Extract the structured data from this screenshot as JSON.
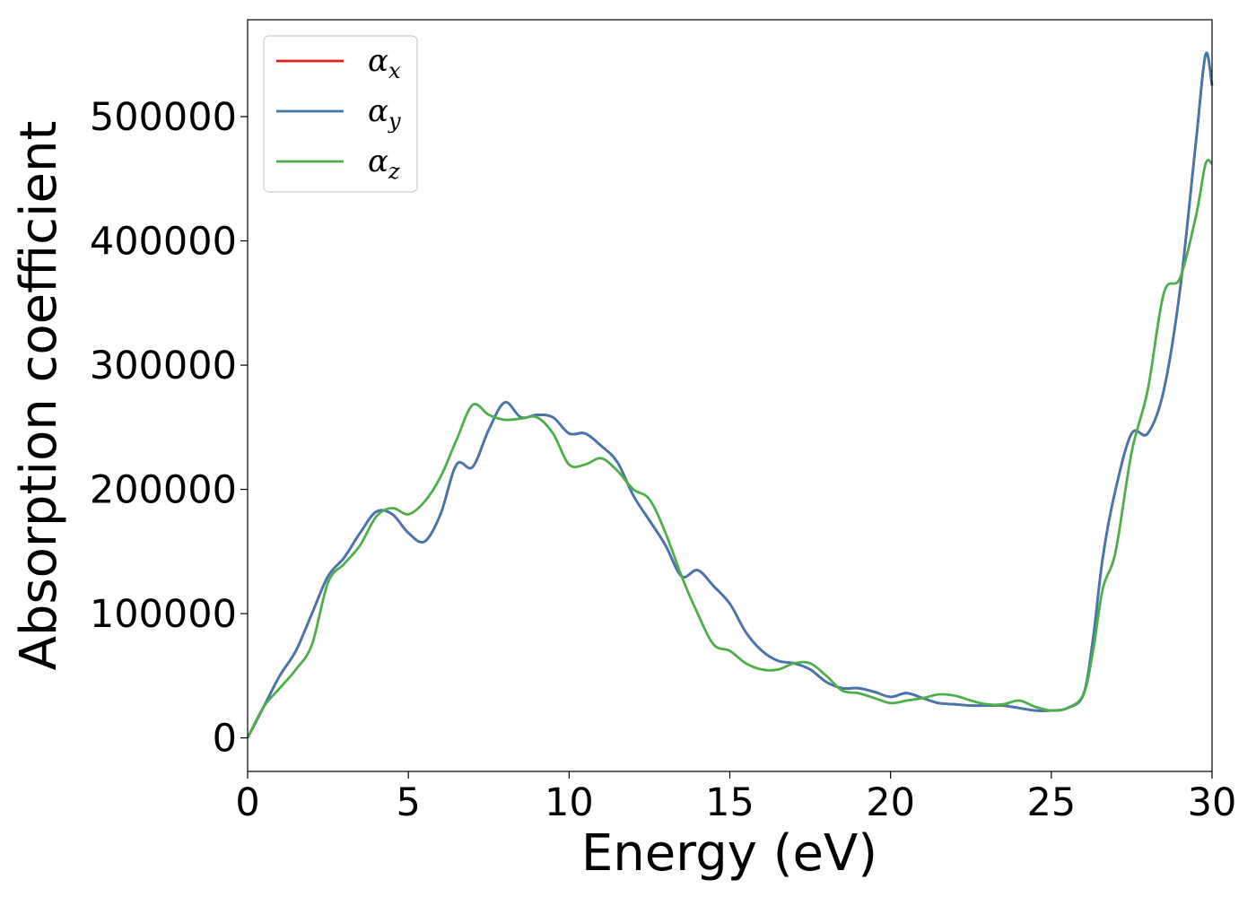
{
  "chart_data": {
    "type": "line",
    "xlabel": "Energy (eV)",
    "ylabel": "Absorption coefficient",
    "xlim": [
      0,
      30
    ],
    "ylim": [
      -27000,
      578000
    ],
    "xticks": [
      0,
      5,
      10,
      15,
      20,
      25,
      30
    ],
    "xtick_labels": [
      "0",
      "5",
      "10",
      "15",
      "20",
      "25",
      "30"
    ],
    "yticks": [
      0,
      100000,
      200000,
      300000,
      400000,
      500000
    ],
    "ytick_labels": [
      "0",
      "100000",
      "200000",
      "300000",
      "400000",
      "500000"
    ],
    "grid": false,
    "legend_position": "top-left",
    "series": [
      {
        "name": "α_x",
        "symbol": "α",
        "subscript": "x",
        "color": "#e41a1c",
        "x": [
          0,
          0.5,
          1,
          1.5,
          2,
          2.5,
          3,
          3.5,
          4,
          4.5,
          5,
          5.5,
          6,
          6.5,
          7,
          7.5,
          8,
          8.5,
          9,
          9.5,
          10,
          10.5,
          11,
          11.5,
          12,
          12.5,
          13,
          13.5,
          14,
          14.5,
          15,
          15.5,
          16,
          16.5,
          17,
          17.5,
          18,
          18.5,
          19,
          19.5,
          20,
          20.5,
          21,
          21.5,
          22,
          22.5,
          23,
          23.5,
          24,
          24.5,
          25,
          25.5,
          26,
          26.3,
          26.6,
          27,
          27.5,
          28,
          28.5,
          29,
          29.5,
          29.8,
          30
        ],
        "y": [
          0,
          25000,
          50000,
          70000,
          100000,
          130000,
          145000,
          165000,
          182000,
          180000,
          165000,
          158000,
          180000,
          220000,
          218000,
          248000,
          270000,
          258000,
          260000,
          258000,
          245000,
          245000,
          235000,
          222000,
          195000,
          175000,
          155000,
          130000,
          135000,
          122000,
          108000,
          85000,
          70000,
          62000,
          60000,
          55000,
          45000,
          40000,
          40000,
          37000,
          33000,
          36000,
          32000,
          28000,
          27000,
          26000,
          26000,
          26000,
          24000,
          22000,
          22000,
          24000,
          35000,
          80000,
          145000,
          200000,
          245000,
          245000,
          280000,
          360000,
          480000,
          550000,
          525000
        ]
      },
      {
        "name": "α_y",
        "symbol": "α",
        "subscript": "y",
        "color": "#4377b0",
        "x": [
          0,
          0.5,
          1,
          1.5,
          2,
          2.5,
          3,
          3.5,
          4,
          4.5,
          5,
          5.5,
          6,
          6.5,
          7,
          7.5,
          8,
          8.5,
          9,
          9.5,
          10,
          10.5,
          11,
          11.5,
          12,
          12.5,
          13,
          13.5,
          14,
          14.5,
          15,
          15.5,
          16,
          16.5,
          17,
          17.5,
          18,
          18.5,
          19,
          19.5,
          20,
          20.5,
          21,
          21.5,
          22,
          22.5,
          23,
          23.5,
          24,
          24.5,
          25,
          25.5,
          26,
          26.3,
          26.6,
          27,
          27.5,
          28,
          28.5,
          29,
          29.5,
          29.8,
          30
        ],
        "y": [
          0,
          25000,
          50000,
          70000,
          100000,
          130000,
          145000,
          165000,
          182000,
          180000,
          165000,
          158000,
          180000,
          220000,
          218000,
          248000,
          270000,
          258000,
          260000,
          258000,
          245000,
          245000,
          235000,
          222000,
          195000,
          175000,
          155000,
          130000,
          135000,
          122000,
          108000,
          85000,
          70000,
          62000,
          60000,
          55000,
          45000,
          40000,
          40000,
          37000,
          33000,
          36000,
          32000,
          28000,
          27000,
          26000,
          26000,
          26000,
          24000,
          22000,
          22000,
          24000,
          35000,
          80000,
          145000,
          200000,
          245000,
          245000,
          280000,
          360000,
          480000,
          550000,
          525000
        ]
      },
      {
        "name": "α_z",
        "symbol": "α",
        "subscript": "z",
        "color": "#4daf4a",
        "x": [
          0,
          0.5,
          1,
          1.5,
          2,
          2.5,
          3,
          3.5,
          4,
          4.5,
          5,
          5.5,
          6,
          6.5,
          7,
          7.5,
          8,
          8.5,
          9,
          9.5,
          10,
          10.5,
          11,
          11.5,
          12,
          12.5,
          13,
          13.5,
          14,
          14.5,
          15,
          15.5,
          16,
          16.5,
          17,
          17.5,
          18,
          18.5,
          19,
          19.5,
          20,
          20.5,
          21,
          21.5,
          22,
          22.5,
          23,
          23.5,
          24,
          24.5,
          25,
          25.5,
          26,
          26.3,
          26.6,
          27,
          27.5,
          28,
          28.5,
          29,
          29.5,
          29.8,
          30
        ],
        "y": [
          0,
          25000,
          40000,
          55000,
          75000,
          125000,
          140000,
          155000,
          178000,
          185000,
          180000,
          190000,
          210000,
          240000,
          268000,
          260000,
          256000,
          257000,
          258000,
          245000,
          220000,
          220000,
          225000,
          215000,
          200000,
          192000,
          165000,
          130000,
          100000,
          75000,
          70000,
          60000,
          55000,
          55000,
          60000,
          60000,
          50000,
          38000,
          36000,
          32000,
          28000,
          30000,
          32000,
          35000,
          34000,
          30000,
          27000,
          27000,
          30000,
          25000,
          22000,
          24000,
          35000,
          70000,
          120000,
          150000,
          230000,
          280000,
          358000,
          370000,
          420000,
          462000,
          462000
        ]
      }
    ]
  }
}
